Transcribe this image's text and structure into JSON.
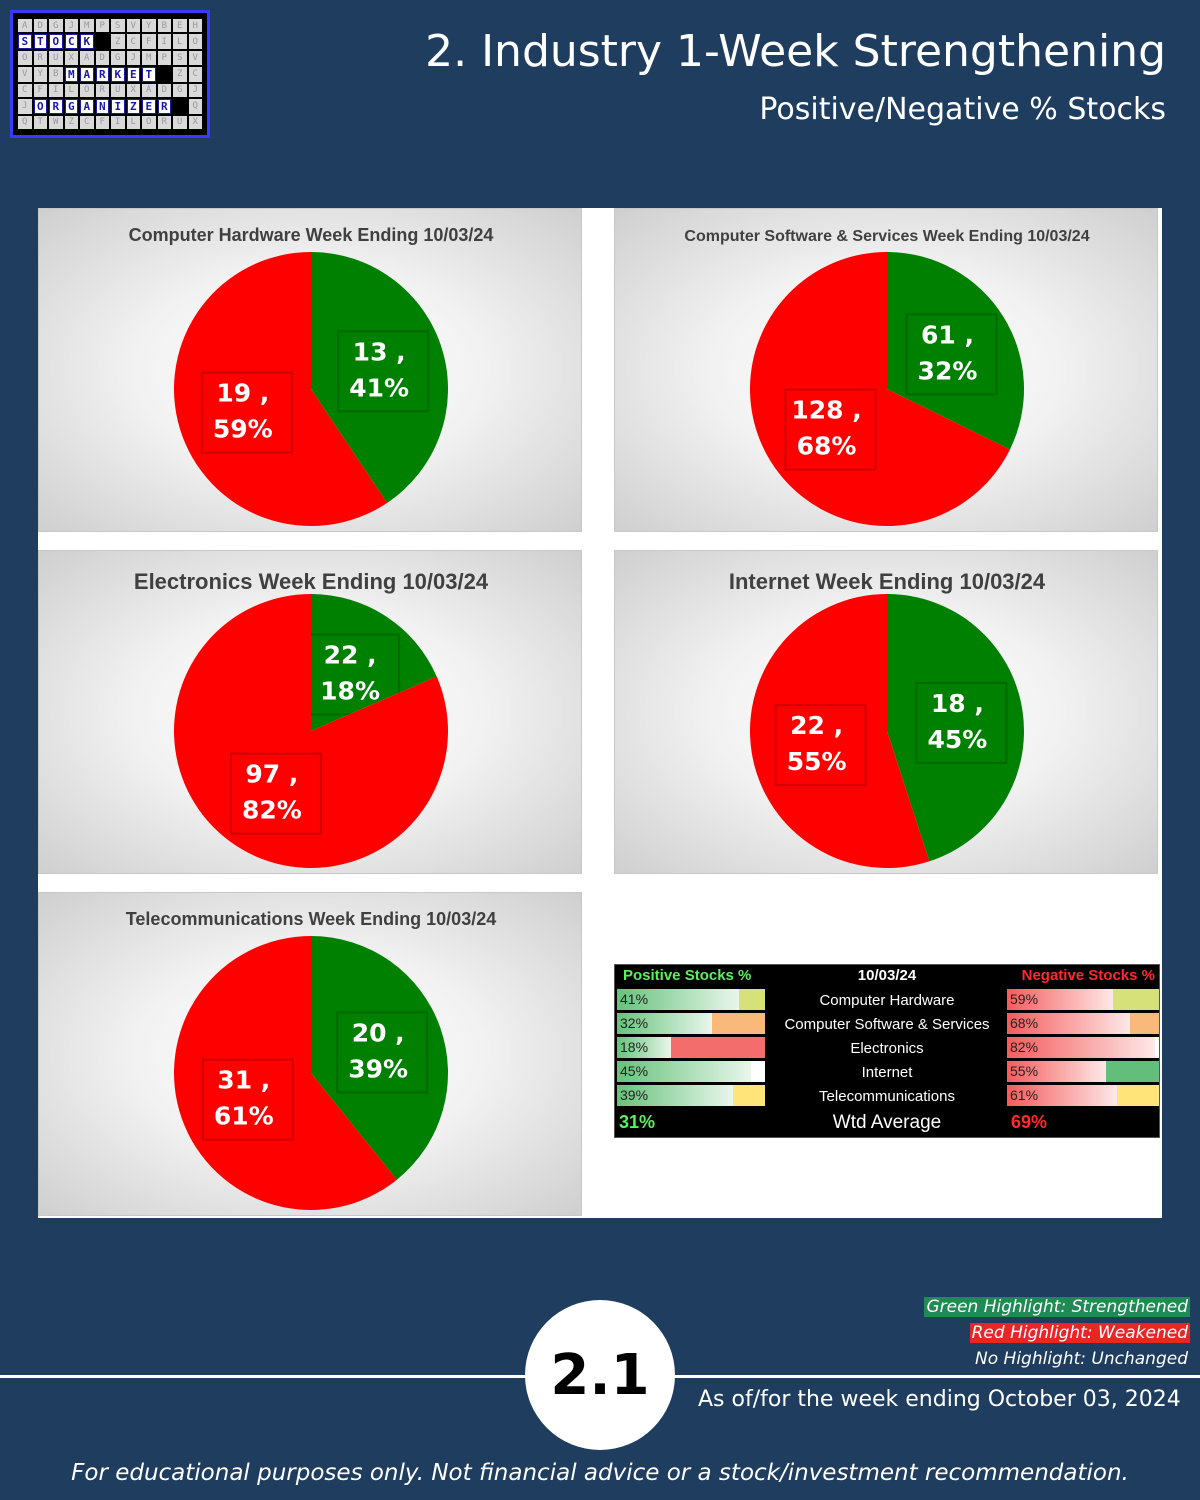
{
  "header": {
    "title": "2. Industry 1-Week Strengthening",
    "subtitle": "Positive/Negative % Stocks"
  },
  "logo": {
    "row1": [
      "S",
      "T",
      "O",
      "C",
      "K"
    ],
    "row2": [
      "M",
      "A",
      "R",
      "K",
      "E",
      "T"
    ],
    "row3": [
      "O",
      "R",
      "G",
      "A",
      "N",
      "I",
      "Z",
      "E",
      "R"
    ]
  },
  "colors": {
    "positive": "#008000",
    "negative": "#ff0000",
    "background": "#1e3d5f"
  },
  "chart_data": [
    {
      "type": "pie",
      "title": "Computer Hardware Week Ending 10/03/24",
      "slices": [
        {
          "label": "Positive",
          "value": 13,
          "percent": 41,
          "text": "13 ,",
          "pct_text": "41%",
          "color": "#008000"
        },
        {
          "label": "Negative",
          "value": 19,
          "percent": 59,
          "text": "19 ,",
          "pct_text": "59%",
          "color": "#ff0000"
        }
      ]
    },
    {
      "type": "pie",
      "title": "Computer Software & Services Week Ending 10/03/24",
      "slices": [
        {
          "label": "Positive",
          "value": 61,
          "percent": 32,
          "text": "61 ,",
          "pct_text": "32%",
          "color": "#008000"
        },
        {
          "label": "Negative",
          "value": 128,
          "percent": 68,
          "text": "128 ,",
          "pct_text": "68%",
          "color": "#ff0000"
        }
      ]
    },
    {
      "type": "pie",
      "title": "Electronics Week Ending 10/03/24",
      "slices": [
        {
          "label": "Positive",
          "value": 22,
          "percent": 18,
          "text": "22 ,",
          "pct_text": "18%",
          "color": "#008000"
        },
        {
          "label": "Negative",
          "value": 97,
          "percent": 82,
          "text": "97 ,",
          "pct_text": "82%",
          "color": "#ff0000"
        }
      ]
    },
    {
      "type": "pie",
      "title": "Internet Week Ending 10/03/24",
      "slices": [
        {
          "label": "Positive",
          "value": 18,
          "percent": 45,
          "text": "18 ,",
          "pct_text": "45%",
          "color": "#008000"
        },
        {
          "label": "Negative",
          "value": 22,
          "percent": 55,
          "text": "22 ,",
          "pct_text": "55%",
          "color": "#ff0000"
        }
      ]
    },
    {
      "type": "pie",
      "title": "Telecommunications Week Ending 10/03/24",
      "slices": [
        {
          "label": "Positive",
          "value": 20,
          "percent": 39,
          "text": "20 ,",
          "pct_text": "39%",
          "color": "#008000"
        },
        {
          "label": "Negative",
          "value": 31,
          "percent": 61,
          "text": "31 ,",
          "pct_text": "61%",
          "color": "#ff0000"
        }
      ]
    }
  ],
  "summary_table": {
    "header_positive": "Positive Stocks %",
    "header_date": "10/03/24",
    "header_negative": "Negative Stocks %",
    "rows": [
      {
        "industry": "Computer Hardware",
        "positive": "41%",
        "positive_value": 41,
        "negative": "59%",
        "negative_value": 59,
        "pos_flag": "#d6e17a",
        "neg_flag": "#d6e17a"
      },
      {
        "industry": "Computer Software & Services",
        "positive": "32%",
        "positive_value": 32,
        "negative": "68%",
        "negative_value": 68,
        "pos_flag": "#f9b97b",
        "neg_flag": "#f9b97b"
      },
      {
        "industry": "Electronics",
        "positive": "18%",
        "positive_value": 18,
        "negative": "82%",
        "negative_value": 82,
        "pos_flag": "#f46d6d",
        "neg_flag": "#ffffff"
      },
      {
        "industry": "Internet",
        "positive": "45%",
        "positive_value": 45,
        "negative": "55%",
        "negative_value": 55,
        "pos_flag": "#ffffff",
        "neg_flag": "#63be7b"
      },
      {
        "industry": "Telecommunications",
        "positive": "39%",
        "positive_value": 39,
        "negative": "61%",
        "negative_value": 61,
        "pos_flag": "#ffe47a",
        "neg_flag": "#ffe47a"
      }
    ],
    "avg_positive": "31%",
    "avg_label": "Wtd Average",
    "avg_negative": "69%"
  },
  "legend": {
    "green": "Green Highlight: Strengthened",
    "red": "Red Highlight: Weakened",
    "none": "No Highlight: Unchanged"
  },
  "footer": {
    "badge": "2.1",
    "as_of": "As of/for the week ending October 03, 2024",
    "disclaimer": "For educational purposes only. Not financial advice or a stock/investment recommendation."
  }
}
